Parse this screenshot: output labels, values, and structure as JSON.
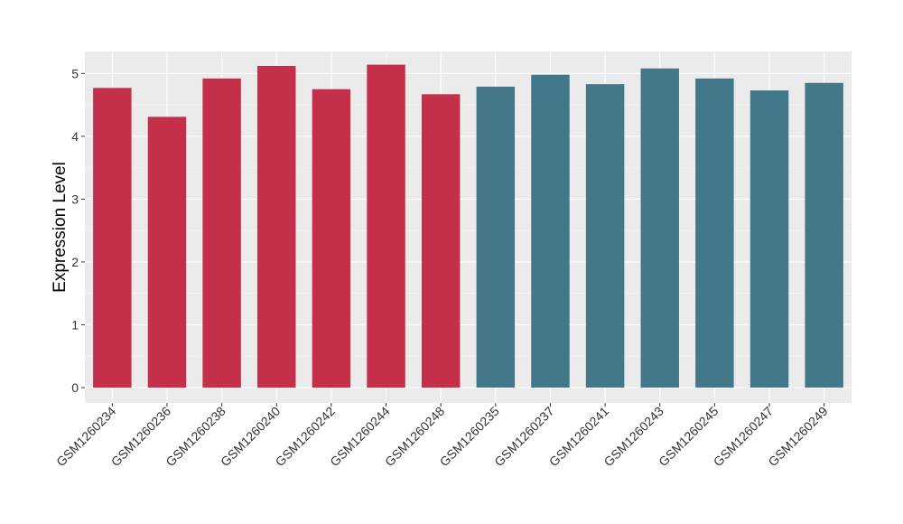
{
  "chart_data": {
    "type": "bar",
    "title": "",
    "xlabel": "",
    "ylabel": "Expression Level",
    "ylim": [
      0,
      5.35
    ],
    "yticks": [
      0,
      1,
      2,
      3,
      4,
      5
    ],
    "grid": true,
    "legend": "none",
    "categories": [
      "GSM1260234",
      "GSM1260236",
      "GSM1260238",
      "GSM1260240",
      "GSM1260242",
      "GSM1260244",
      "GSM1260248",
      "GSM1260235",
      "GSM1260237",
      "GSM1260241",
      "GSM1260243",
      "GSM1260245",
      "GSM1260247",
      "GSM1260249"
    ],
    "values": [
      4.77,
      4.31,
      4.92,
      5.12,
      4.75,
      5.14,
      4.67,
      4.79,
      4.98,
      4.83,
      5.08,
      4.92,
      4.73,
      4.85
    ],
    "bar_colors": [
      "#C4304A",
      "#C4304A",
      "#C4304A",
      "#C4304A",
      "#C4304A",
      "#C4304A",
      "#C4304A",
      "#42788A",
      "#42788A",
      "#42788A",
      "#42788A",
      "#42788A",
      "#42788A",
      "#42788A"
    ],
    "colors": {
      "panel_background": "#EBEBEB",
      "grid_major": "#FFFFFF",
      "tick_mark": "#333333"
    }
  }
}
